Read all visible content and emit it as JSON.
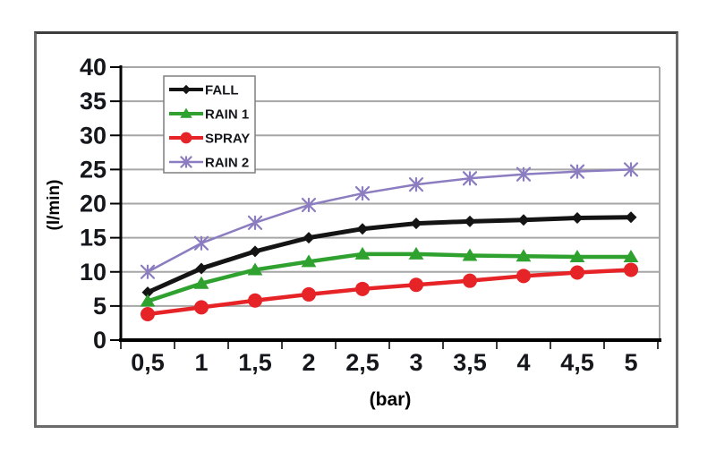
{
  "chart_data": {
    "type": "line",
    "title": "",
    "xlabel": "(bar)",
    "ylabel": "(l/min)",
    "x": [
      0.5,
      1,
      1.5,
      2,
      2.5,
      3,
      3.5,
      4,
      4.5,
      5
    ],
    "x_tick_labels": [
      "0,5",
      "1",
      "1,5",
      "2",
      "2,5",
      "3",
      "3,5",
      "4",
      "4,5",
      "5"
    ],
    "y_ticks": [
      0,
      5,
      10,
      15,
      20,
      25,
      30,
      35,
      40
    ],
    "ylim": [
      0,
      40
    ],
    "grid": true,
    "legend_position": "upper-left-inside",
    "series": [
      {
        "name": "FALL",
        "color": "#141414",
        "marker": "diamond",
        "line_width": 5,
        "values": [
          7.0,
          10.5,
          13.0,
          15.0,
          16.3,
          17.1,
          17.4,
          17.6,
          17.9,
          18.0
        ]
      },
      {
        "name": "RAIN 1",
        "color": "#2fa12f",
        "marker": "triangle",
        "line_width": 4.5,
        "values": [
          5.7,
          8.3,
          10.3,
          11.5,
          12.6,
          12.6,
          12.4,
          12.3,
          12.2,
          12.2
        ]
      },
      {
        "name": "SPRAY",
        "color": "#e62427",
        "marker": "circle",
        "line_width": 4.5,
        "values": [
          3.8,
          4.8,
          5.8,
          6.7,
          7.5,
          8.1,
          8.7,
          9.4,
          9.9,
          10.3
        ]
      },
      {
        "name": "RAIN 2",
        "color": "#8c7cc0",
        "marker": "xstar",
        "line_width": 2.5,
        "values": [
          10.0,
          14.2,
          17.2,
          19.8,
          21.5,
          22.8,
          23.7,
          24.3,
          24.7,
          25.0
        ]
      }
    ],
    "colors": {
      "gridline": "#a6a6a6",
      "axis": "#000000",
      "plot_border": "#a6a6a6",
      "tick_text": "#15171c",
      "legend_border": "#7f7f7f",
      "legend_bg": "#ffffff",
      "frame_border": "#6b6b6b"
    }
  }
}
